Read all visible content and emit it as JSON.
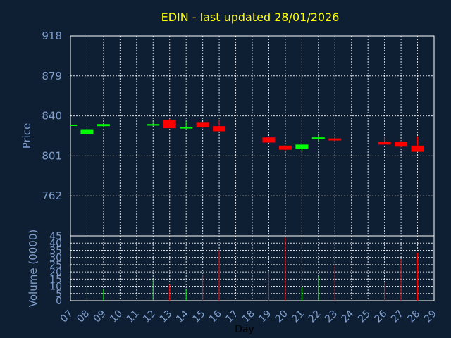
{
  "chart_data": {
    "type": "candlestick",
    "title": "EDIN - last updated 28/01/2026",
    "xlabel": "Day",
    "colors": {
      "background": "#0f1f33",
      "plot_border": "#ffffff",
      "grid": "#ffffff",
      "tick_text": "#7f9fcf",
      "title": "#ffff00",
      "up": "#00ff00",
      "down": "#ff0000"
    },
    "grid": true,
    "x_ticks": [
      "07",
      "08",
      "09",
      "10",
      "11",
      "12",
      "13",
      "14",
      "15",
      "16",
      "17",
      "18",
      "19",
      "20",
      "21",
      "22",
      "23",
      "24",
      "25",
      "26",
      "27",
      "28",
      "29"
    ],
    "price_panel": {
      "ylabel": "Price",
      "ylim": [
        723,
        918
      ],
      "yticks": [
        918,
        879,
        840,
        801,
        762
      ],
      "candles": [
        {
          "day": "07",
          "open": 831,
          "close": 831.5,
          "high": 831.5,
          "low": 830.5,
          "dir": "up"
        },
        {
          "day": "08",
          "open": 822,
          "close": 827,
          "high": 830,
          "low": 822,
          "dir": "up"
        },
        {
          "day": "09",
          "open": 830,
          "close": 832,
          "high": 832,
          "low": 829,
          "dir": "up"
        },
        {
          "day": "12",
          "open": 830.5,
          "close": 832,
          "high": 835,
          "low": 830,
          "dir": "up"
        },
        {
          "day": "13",
          "open": 836,
          "close": 828,
          "high": 837,
          "low": 828,
          "dir": "down"
        },
        {
          "day": "14",
          "open": 828,
          "close": 829,
          "high": 835,
          "low": 827,
          "dir": "up"
        },
        {
          "day": "15",
          "open": 834,
          "close": 829,
          "high": 834,
          "low": 828,
          "dir": "down"
        },
        {
          "day": "16",
          "open": 830,
          "close": 825,
          "high": 836,
          "low": 825,
          "dir": "down"
        },
        {
          "day": "19",
          "open": 819,
          "close": 814,
          "high": 820,
          "low": 814,
          "dir": "down"
        },
        {
          "day": "20",
          "open": 811,
          "close": 807,
          "high": 811,
          "low": 806,
          "dir": "down"
        },
        {
          "day": "21",
          "open": 808,
          "close": 812,
          "high": 812,
          "low": 806,
          "dir": "up"
        },
        {
          "day": "22",
          "open": 818,
          "close": 819,
          "high": 822,
          "low": 815,
          "dir": "up"
        },
        {
          "day": "23",
          "open": 818,
          "close": 816,
          "high": 818,
          "low": 815,
          "dir": "down"
        },
        {
          "day": "26",
          "open": 815,
          "close": 812,
          "high": 819,
          "low": 812,
          "dir": "down"
        },
        {
          "day": "27",
          "open": 815,
          "close": 810,
          "high": 816,
          "low": 809,
          "dir": "down"
        },
        {
          "day": "28",
          "open": 811,
          "close": 805,
          "high": 820,
          "low": 805,
          "dir": "down"
        }
      ]
    },
    "volume_panel": {
      "ylabel": "Volume (0000)",
      "ylim": [
        0,
        45
      ],
      "yticks": [
        0,
        5,
        10,
        15,
        20,
        25,
        30,
        35,
        40,
        45
      ],
      "bars": [
        {
          "day": "08",
          "value": 10,
          "dir": "up"
        },
        {
          "day": "09",
          "value": 8,
          "dir": "up"
        },
        {
          "day": "12",
          "value": 15,
          "dir": "up"
        },
        {
          "day": "13",
          "value": 11,
          "dir": "down"
        },
        {
          "day": "14",
          "value": 8,
          "dir": "up"
        },
        {
          "day": "15",
          "value": 18,
          "dir": "down"
        },
        {
          "day": "16",
          "value": 35,
          "dir": "down"
        },
        {
          "day": "19",
          "value": 20,
          "dir": "down"
        },
        {
          "day": "20",
          "value": 44,
          "dir": "down"
        },
        {
          "day": "21",
          "value": 9,
          "dir": "up"
        },
        {
          "day": "22",
          "value": 17,
          "dir": "up"
        },
        {
          "day": "23",
          "value": 25,
          "dir": "down"
        },
        {
          "day": "26",
          "value": 13,
          "dir": "down"
        },
        {
          "day": "27",
          "value": 29,
          "dir": "down"
        },
        {
          "day": "28",
          "value": 33,
          "dir": "down"
        }
      ]
    }
  }
}
